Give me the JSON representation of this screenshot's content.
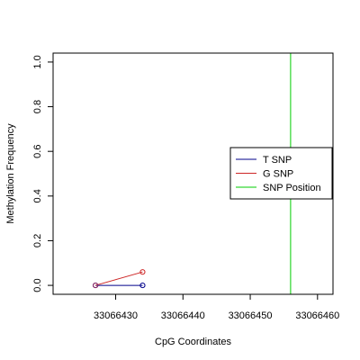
{
  "chart_data": {
    "type": "line",
    "title": "",
    "xlabel": "CpG Coordinates",
    "ylabel": "Methylation Frequency",
    "xlim": [
      33066420.7,
      33066462.3
    ],
    "ylim": [
      -0.04,
      1.04
    ],
    "x_ticks": [
      33066430,
      33066440,
      33066450,
      33066460
    ],
    "x_tick_labels": [
      "33066430",
      "33066440",
      "33066450",
      "33066460"
    ],
    "y_ticks": [
      0,
      0.2,
      0.4,
      0.6,
      0.8,
      1
    ],
    "y_tick_labels": [
      "0.0",
      "0.2",
      "0.4",
      "0.6",
      "0.8",
      "1.0"
    ],
    "series": [
      {
        "name": "T SNP",
        "color": "#00008B",
        "marker": "open-circle",
        "x": [
          33066427,
          33066434
        ],
        "y": [
          0,
          0
        ]
      },
      {
        "name": "G SNP",
        "color": "#CD2626",
        "marker": "open-circle",
        "x": [
          33066427,
          33066434
        ],
        "y": [
          0,
          0.06
        ]
      }
    ],
    "vlines": [
      {
        "name": "SNP Position",
        "color": "#00CD00",
        "x": 33066456
      }
    ],
    "legend": {
      "position": "right",
      "entries": [
        {
          "label": "T SNP",
          "color": "#00008B"
        },
        {
          "label": "G SNP",
          "color": "#CD2626"
        },
        {
          "label": "SNP Position",
          "color": "#00CD00"
        }
      ]
    },
    "grid": false
  }
}
